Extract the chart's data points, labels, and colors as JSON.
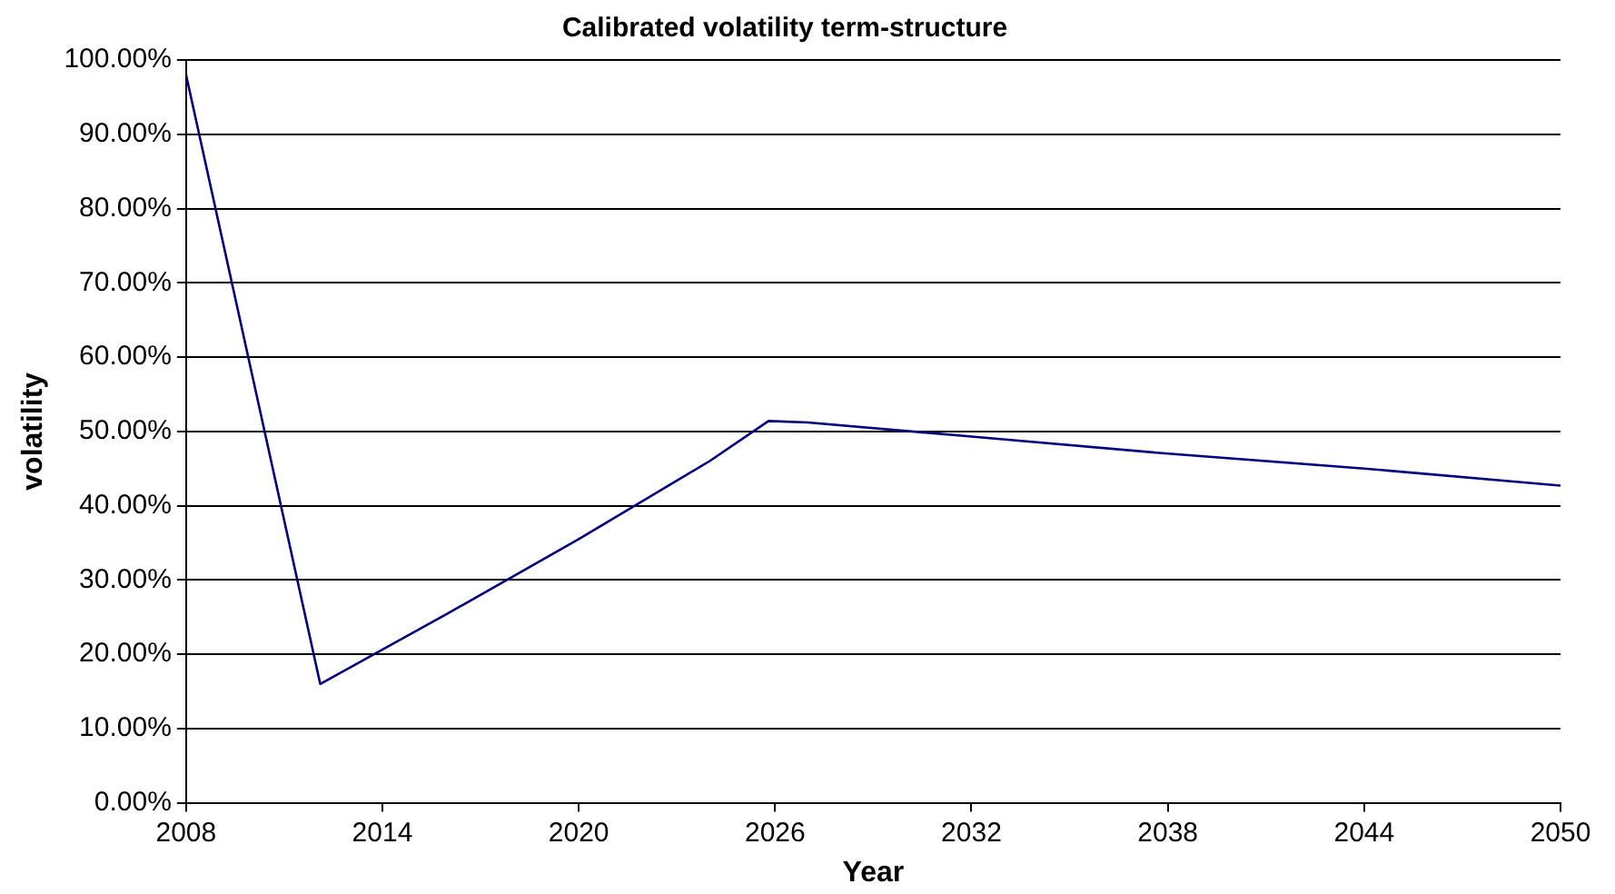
{
  "chart_data": {
    "type": "line",
    "title": "Calibrated volatility term-structure",
    "xlabel": "Year",
    "ylabel": "volatility",
    "x": [
      2008,
      2012.1,
      2016,
      2020,
      2024,
      2025.8,
      2027,
      2032,
      2038,
      2044,
      2050
    ],
    "series": [
      {
        "color": "#000080",
        "values": [
          98,
          16,
          25.5,
          35.5,
          46,
          51.4,
          51.2,
          49.3,
          47,
          45,
          42.7
        ]
      }
    ],
    "xlim": [
      2008,
      2050
    ],
    "xticks": [
      2008,
      2014,
      2020,
      2026,
      2032,
      2038,
      2044,
      2050
    ],
    "ylim": [
      0,
      100
    ],
    "yticks": [
      {
        "value": 0,
        "label": "0.00%"
      },
      {
        "value": 10,
        "label": "10.00%"
      },
      {
        "value": 20,
        "label": "20.00%"
      },
      {
        "value": 30,
        "label": "30.00%"
      },
      {
        "value": 40,
        "label": "40.00%"
      },
      {
        "value": 50,
        "label": "50.00%"
      },
      {
        "value": 60,
        "label": "60.00%"
      },
      {
        "value": 70,
        "label": "70.00%"
      },
      {
        "value": 80,
        "label": "80.00%"
      },
      {
        "value": 90,
        "label": "90.00%"
      },
      {
        "value": 100,
        "label": "100.00%"
      }
    ],
    "grid": "y",
    "legend": false,
    "marker": "none",
    "line_style": "solid"
  }
}
